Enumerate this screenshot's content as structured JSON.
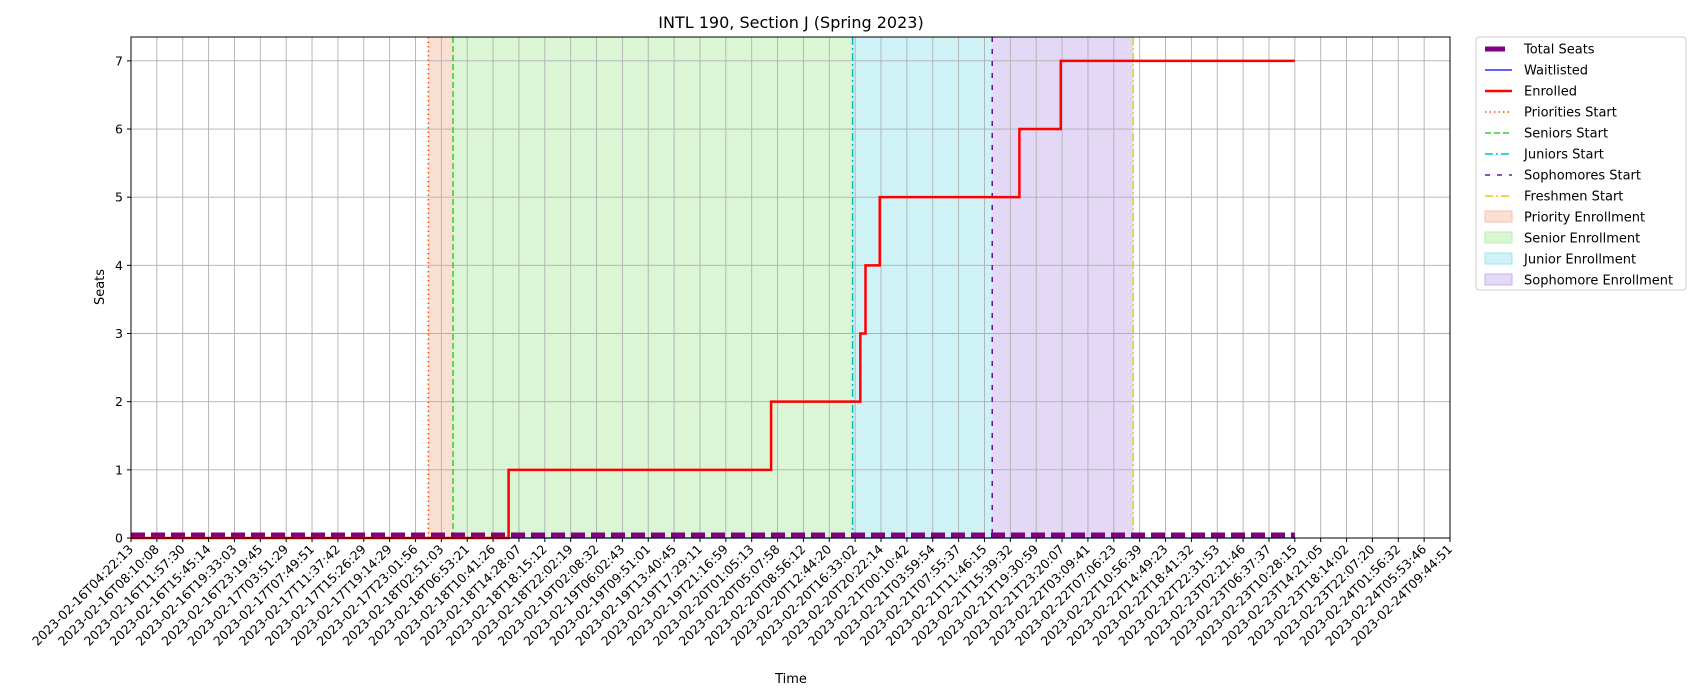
{
  "chart_data": {
    "type": "line",
    "title": "INTL 190, Section J (Spring 2023)",
    "xlabel": "Time",
    "ylabel": "Seats",
    "ylim": [
      0,
      7.35
    ],
    "yticks": [
      0,
      1,
      2,
      3,
      4,
      5,
      6,
      7
    ],
    "grid": true,
    "legend_position": "outside-right",
    "categories": [
      "2023-02-16T04:22:13",
      "2023-02-16T08:10:08",
      "2023-02-16T11:57:30",
      "2023-02-16T15:45:14",
      "2023-02-16T19:33:03",
      "2023-02-16T23:19:45",
      "2023-02-17T03:51:29",
      "2023-02-17T07:49:51",
      "2023-02-17T11:37:42",
      "2023-02-17T15:26:29",
      "2023-02-17T19:14:29",
      "2023-02-17T23:01:56",
      "2023-02-18T02:51:03",
      "2023-02-18T06:53:21",
      "2023-02-18T10:41:26",
      "2023-02-18T14:28:07",
      "2023-02-18T18:15:12",
      "2023-02-18T22:02:19",
      "2023-02-19T02:08:32",
      "2023-02-19T06:02:43",
      "2023-02-19T09:51:01",
      "2023-02-19T13:40:45",
      "2023-02-19T17:29:11",
      "2023-02-19T21:16:59",
      "2023-02-20T01:05:13",
      "2023-02-20T05:07:58",
      "2023-02-20T08:56:12",
      "2023-02-20T12:44:20",
      "2023-02-20T16:33:02",
      "2023-02-20T20:22:14",
      "2023-02-21T00:10:42",
      "2023-02-21T03:59:54",
      "2023-02-21T07:55:37",
      "2023-02-21T11:46:15",
      "2023-02-21T15:39:32",
      "2023-02-21T19:30:59",
      "2023-02-21T23:20:07",
      "2023-02-22T03:09:41",
      "2023-02-22T07:06:23",
      "2023-02-22T10:56:39",
      "2023-02-22T14:49:23",
      "2023-02-22T18:41:32",
      "2023-02-22T22:31:53",
      "2023-02-23T02:21:46",
      "2023-02-23T06:37:37",
      "2023-02-23T10:28:15",
      "2023-02-23T14:21:05",
      "2023-02-23T18:14:02",
      "2023-02-23T22:07:20",
      "2023-02-24T01:56:32",
      "2023-02-24T05:53:46",
      "2023-02-24T09:44:51"
    ],
    "series": [
      {
        "name": "Total Seats",
        "color": "#800080",
        "style": "thick-dashed",
        "points": [
          [
            0,
            0
          ],
          [
            45,
            0
          ]
        ]
      },
      {
        "name": "Waitlisted",
        "color": "#0000ff",
        "style": "solid",
        "points": [
          [
            0,
            0
          ],
          [
            45,
            0
          ]
        ]
      },
      {
        "name": "Enrolled",
        "color": "#ff0000",
        "style": "solid-step",
        "points": [
          [
            0,
            0
          ],
          [
            14.6,
            0
          ],
          [
            14.6,
            1
          ],
          [
            24.75,
            1
          ],
          [
            24.75,
            2
          ],
          [
            28.2,
            2
          ],
          [
            28.2,
            3
          ],
          [
            28.4,
            3
          ],
          [
            28.4,
            4
          ],
          [
            28.95,
            4
          ],
          [
            28.95,
            5
          ],
          [
            34.35,
            5
          ],
          [
            34.35,
            6
          ],
          [
            35.95,
            6
          ],
          [
            35.95,
            7
          ],
          [
            45,
            7
          ]
        ]
      }
    ],
    "vlines": [
      {
        "name": "Priorities Start",
        "x": 11.5,
        "color": "#ff4500",
        "dash": "dotted"
      },
      {
        "name": "Seniors Start",
        "x": 12.45,
        "color": "#32cd32",
        "dash": "dashed"
      },
      {
        "name": "Juniors Start",
        "x": 27.9,
        "color": "#00c0c0",
        "dash": "dashdot"
      },
      {
        "name": "Sophomores Start",
        "x": 33.3,
        "color": "#6a0dad",
        "dash": "loosedash"
      },
      {
        "name": "Freshmen Start",
        "x": 38.75,
        "color": "#e6d000",
        "dash": "dashdot"
      }
    ],
    "spans": [
      {
        "name": "Priority Enrollment",
        "from": 11.5,
        "to": 12.45,
        "color": "#f4c2a8"
      },
      {
        "name": "Senior Enrollment",
        "from": 12.45,
        "to": 27.9,
        "color": "#b6edaa"
      },
      {
        "name": "Junior Enrollment",
        "from": 27.9,
        "to": 33.3,
        "color": "#9ee6ec"
      },
      {
        "name": "Sophomore Enrollment",
        "from": 33.3,
        "to": 38.75,
        "color": "#c8b2ee"
      }
    ]
  }
}
